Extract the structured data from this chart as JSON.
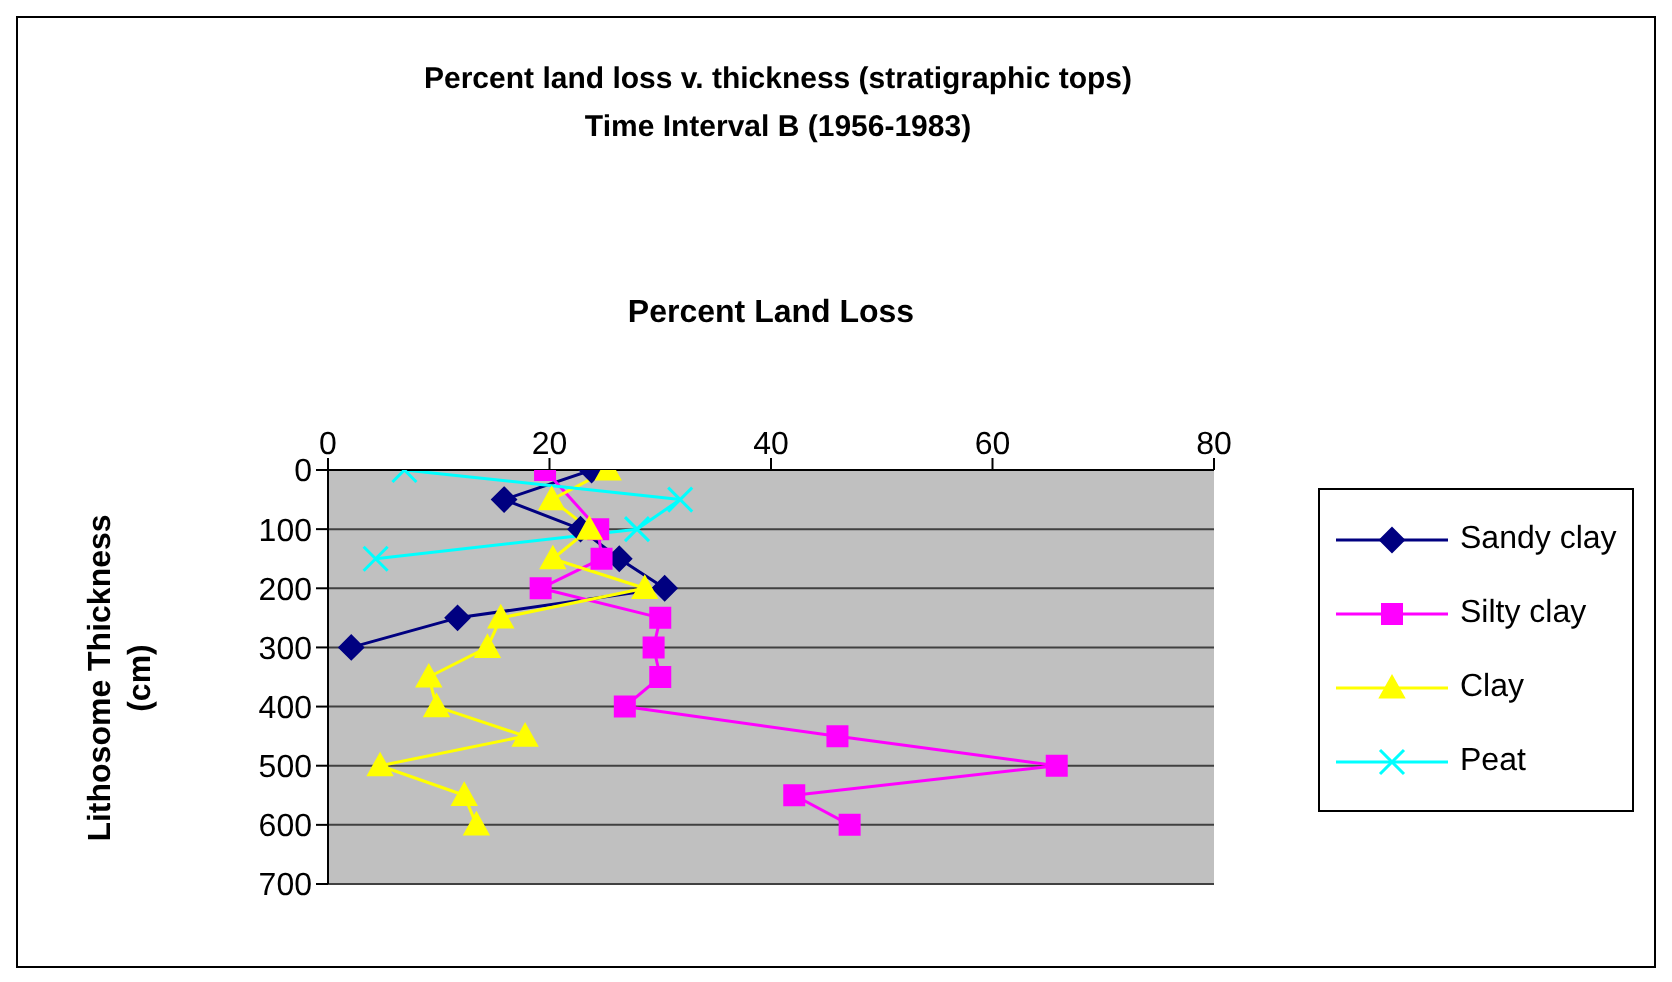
{
  "chart_data": {
    "type": "line",
    "title": "Percent land loss v. thickness (stratigraphic tops)",
    "subtitle": "Time Interval B (1956-1983)",
    "xlabel": "Percent Land Loss",
    "ylabel": "Lithosome Thickness (cm)",
    "xlim": [
      0,
      80
    ],
    "xticks": [
      0,
      20,
      40,
      60,
      80
    ],
    "ylim": [
      700,
      0
    ],
    "yticks": [
      0,
      100,
      200,
      300,
      400,
      500,
      600,
      700
    ],
    "grid": "y",
    "legend": "right",
    "line_style": "solid",
    "series": [
      {
        "name": "Sandy clay",
        "color": "#000080",
        "marker": "diamond",
        "x": [
          23.8,
          15.9,
          22.8,
          26.3,
          30.4,
          11.7,
          2.1
        ],
        "values": [
          0,
          50,
          100,
          150,
          200,
          250,
          300
        ]
      },
      {
        "name": "Silty clay",
        "color": "#ff00ff",
        "marker": "square",
        "x": [
          19.6,
          24.4,
          24.7,
          19.2,
          30,
          29.4,
          30,
          26.8,
          46,
          65.8,
          42.1,
          47.1
        ],
        "values": [
          0,
          100,
          150,
          200,
          250,
          300,
          350,
          400,
          450,
          500,
          550,
          600
        ]
      },
      {
        "name": "Clay",
        "color": "#ffff00",
        "marker": "triangle",
        "x": [
          25.3,
          20.2,
          23.6,
          20.3,
          28.6,
          15.6,
          14.4,
          9.1,
          9.8,
          17.8,
          4.7,
          12.3,
          13.4
        ],
        "values": [
          0,
          50,
          100,
          150,
          200,
          250,
          300,
          350,
          400,
          450,
          500,
          550,
          600
        ]
      },
      {
        "name": "Peat",
        "color": "#00ffff",
        "marker": "cross",
        "x": [
          6.9,
          31.8,
          27.9,
          4.3
        ],
        "values": [
          0,
          50,
          100,
          150
        ]
      }
    ]
  }
}
